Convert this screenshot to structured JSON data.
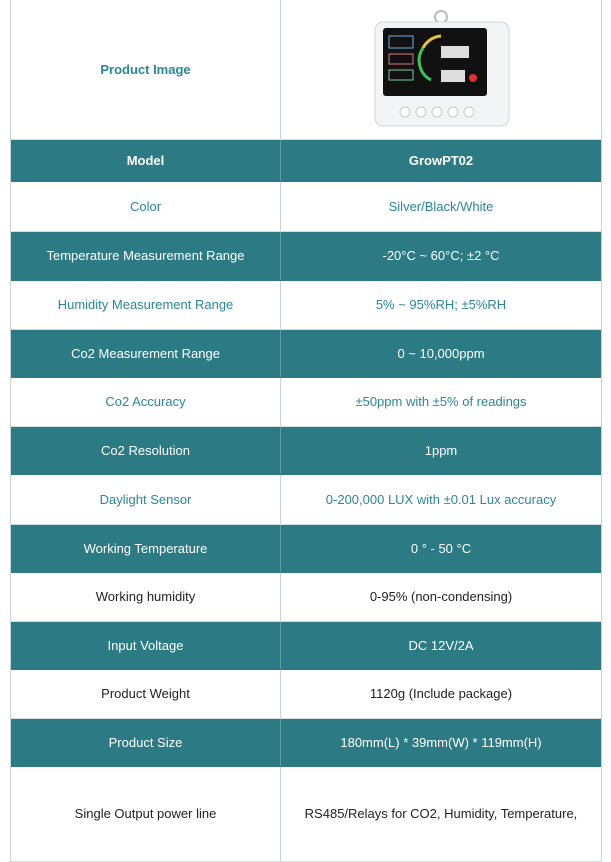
{
  "product_image_label": "Product Image",
  "rows": [
    [
      "Model",
      "GrowPT02"
    ],
    [
      "Color",
      "Silver/Black/White"
    ],
    [
      "Temperature Measurement Range",
      "-20°C ~ 60°C; ±2 °C"
    ],
    [
      "Humidity Measurement Range",
      "5% ~ 95%RH; ±5%RH"
    ],
    [
      "Co2 Measurement Range",
      "0 ~ 10,000ppm"
    ],
    [
      "Co2 Accuracy",
      "±50ppm with ±5% of readings"
    ],
    [
      "Co2 Resolution",
      "1ppm"
    ],
    [
      "Daylight Sensor",
      "0-200,000 LUX with ±0.01 Lux accuracy"
    ],
    [
      "Working Temperature",
      "0 ° - 50 °C"
    ],
    [
      "Working humidity",
      "0-95% (non-condensing)"
    ],
    [
      "Input Voltage",
      "DC 12V/2A"
    ],
    [
      "Product Weight",
      "1120g (Include package)"
    ],
    [
      "Product Size",
      "180mm(L) * 39mm(W) * 119mm(H)"
    ],
    [
      "Single Output power line",
      "RS485/Relays for CO2, Humidity, Temperature,"
    ]
  ]
}
